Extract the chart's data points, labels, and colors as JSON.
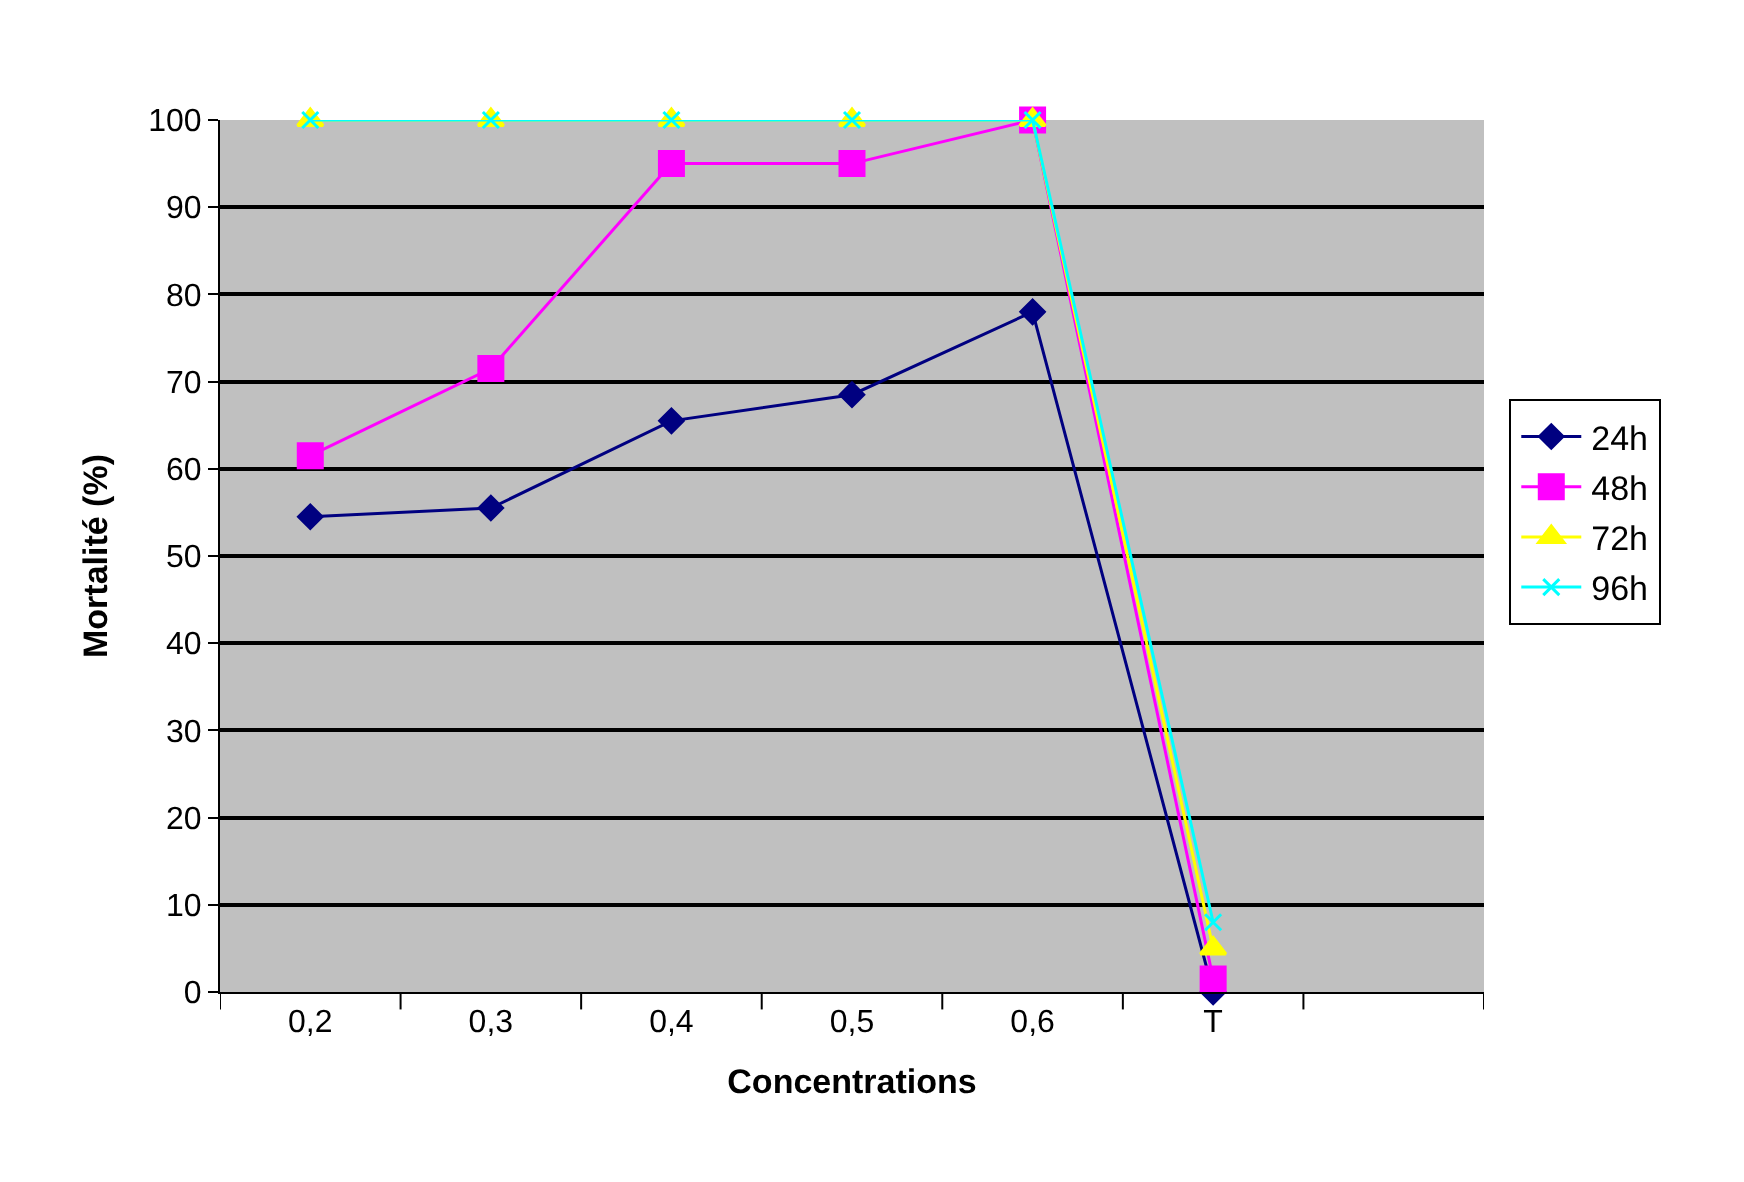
{
  "chart_data": {
    "type": "line",
    "xlabel": "Concentrations",
    "ylabel": "Mortalité (%)",
    "categories": [
      "0,2",
      "0,3",
      "0,4",
      "0,5",
      "0,6",
      "T",
      null
    ],
    "ylim": [
      0,
      100
    ],
    "yticks": [
      0,
      10,
      20,
      30,
      40,
      50,
      60,
      70,
      80,
      90,
      100
    ],
    "grid": "y",
    "legend": "right",
    "line_style": "solid",
    "series": [
      {
        "name": "24h",
        "color": "#000080",
        "marker": "diamond",
        "values": [
          54.5,
          55.5,
          65.5,
          68.5,
          78,
          0,
          null
        ]
      },
      {
        "name": "48h",
        "color": "#ff00ff",
        "marker": "square",
        "values": [
          61.5,
          71.5,
          95,
          95,
          100,
          1.5,
          null
        ]
      },
      {
        "name": "72h",
        "color": "#ffff00",
        "marker": "triangle",
        "values": [
          100,
          100,
          100,
          100,
          100,
          5,
          null
        ]
      },
      {
        "name": "96h",
        "color": "#00ffff",
        "marker": "cross",
        "values": [
          100,
          100,
          100,
          100,
          100,
          8,
          null
        ]
      }
    ]
  }
}
